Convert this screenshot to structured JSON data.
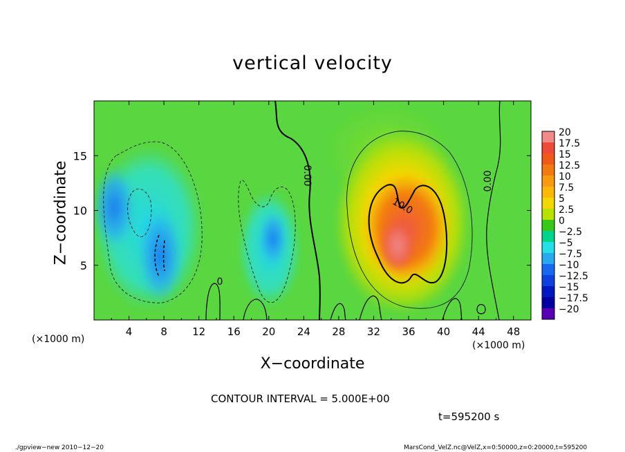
{
  "chart_data": {
    "type": "heatmap",
    "title": "vertical velocity",
    "xlabel": "X−coordinate",
    "ylabel": "Z−coordinate",
    "x_unit_left": "(×1000 m)",
    "x_unit_right": "(×1000 m)",
    "xlim": [
      0,
      50
    ],
    "ylim": [
      0,
      20
    ],
    "xticks": [
      "4",
      "8",
      "12",
      "16",
      "20",
      "24",
      "28",
      "32",
      "36",
      "40",
      "44",
      "48"
    ],
    "yticks": [
      "5",
      "10",
      "15"
    ],
    "colorbar_labels": [
      "20",
      "17.5",
      "15",
      "12.5",
      "10",
      "7.5",
      "5",
      "2.5",
      "0",
      "−2.5",
      "−5",
      "−7.5",
      "−10",
      "−12.5",
      "−15",
      "−17.5",
      "−20"
    ],
    "colorbar_colors": [
      "#f08a8a",
      "#ee4a3a",
      "#f05a18",
      "#f27a10",
      "#f79a10",
      "#fbb808",
      "#f2d800",
      "#b8e000",
      "#38c81a",
      "#00d48c",
      "#24e0e4",
      "#28aaf0",
      "#1868f0",
      "#1040e0",
      "#0018c0",
      "#0000a0",
      "#5a00b4"
    ],
    "contour_labels": [
      "0.00",
      "0.00",
      "10.0",
      "0"
    ],
    "contour_interval_text": "CONTOUR INTERVAL = 5.000E+00",
    "time_text": "t=595200 s",
    "features": [
      {
        "kind": "updraft",
        "x": 34.0,
        "z": 7.5,
        "peak": 20
      },
      {
        "kind": "downdraft",
        "x": 7.5,
        "z": 6.5,
        "peak": -12.5
      },
      {
        "kind": "downdraft",
        "x": 20.5,
        "z": 8.0,
        "peak": -7.5
      }
    ]
  },
  "footer": {
    "left": "./gpview−new   2010−12−20",
    "right": "MarsCond_VelZ.nc@VelZ,x=0:50000,z=0:20000,t=595200"
  }
}
